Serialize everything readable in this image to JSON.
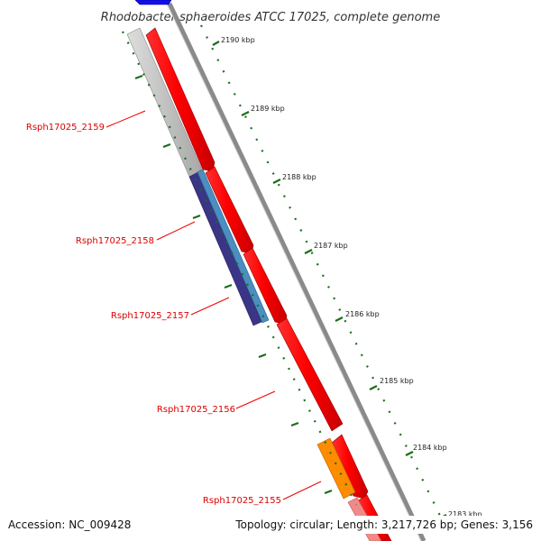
{
  "title": "Rhodobacter sphaeroides ATCC 17025, complete genome",
  "footer": {
    "accession": "Accession: NC_009428",
    "summary": "Topology: circular; Length: 3,217,726 bp; Genes: 3,156"
  },
  "scale_labels": [
    "2190 kbp",
    "2189 kbp",
    "2188 kbp",
    "2187 kbp",
    "2186 kbp",
    "2185 kbp",
    "2184 kbp",
    "2183 kbp"
  ],
  "gene_labels": [
    "Rsph17025_2159",
    "Rsph17025_2158",
    "Rsph17025_2157",
    "Rsph17025_2156",
    "Rsph17025_2155"
  ],
  "colors": {
    "backbone": "#888888",
    "forward_cds": "#ff0000",
    "reverse_cds_pale": "#f08a8a",
    "gray_feature": "#b4b4b4",
    "navy_feature": "#3b3587",
    "steelblue_feature": "#4a8fc0",
    "orange_feature": "#ff8c00",
    "blue_feature": "#1010ee",
    "tick_green": "#1a6e1a",
    "label_red": "#dd0000"
  }
}
